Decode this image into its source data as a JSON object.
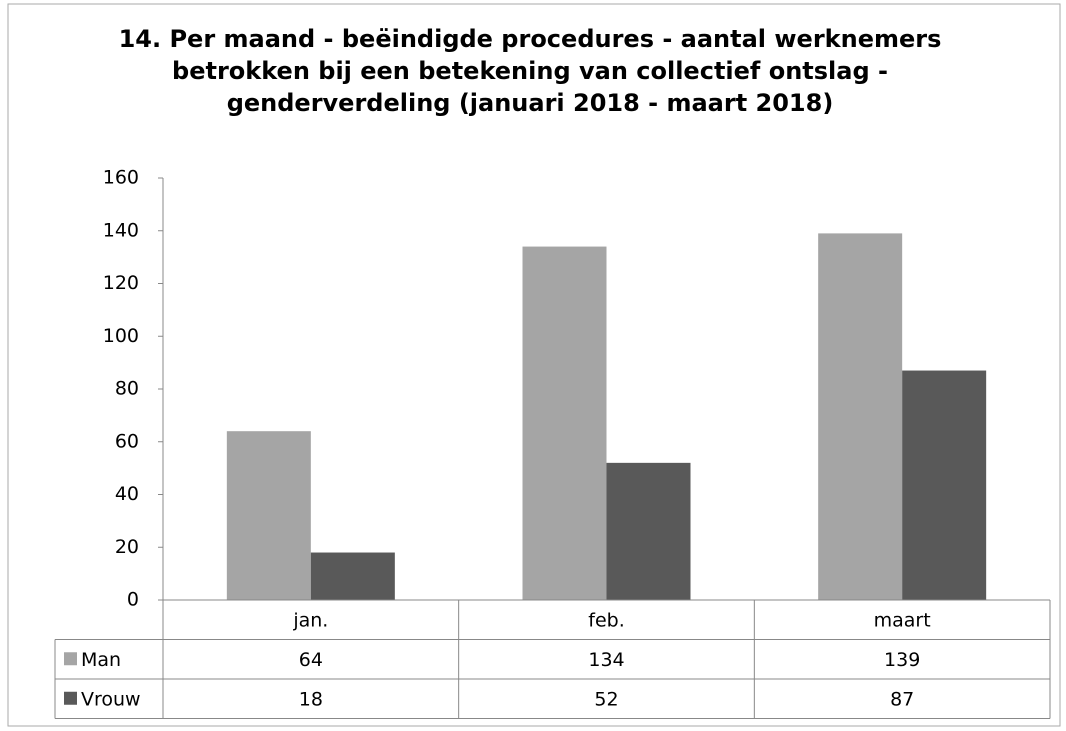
{
  "chart_data": {
    "type": "bar",
    "title": [
      "14. Per maand - beëindigde procedures - aantal werknemers",
      "betrokken bij een betekening van collectief ontslag -",
      "genderverdeling (januari 2018 - maart 2018)"
    ],
    "categories": [
      "jan.",
      "feb.",
      "maart"
    ],
    "series": [
      {
        "name": "Man",
        "color": "#a5a5a5",
        "values": [
          64,
          134,
          139
        ]
      },
      {
        "name": "Vrouw",
        "color": "#595959",
        "values": [
          18,
          52,
          87
        ]
      }
    ],
    "ylim": [
      0,
      160
    ],
    "yticks": [
      0,
      20,
      40,
      60,
      80,
      100,
      120,
      140,
      160
    ],
    "grid": false
  }
}
